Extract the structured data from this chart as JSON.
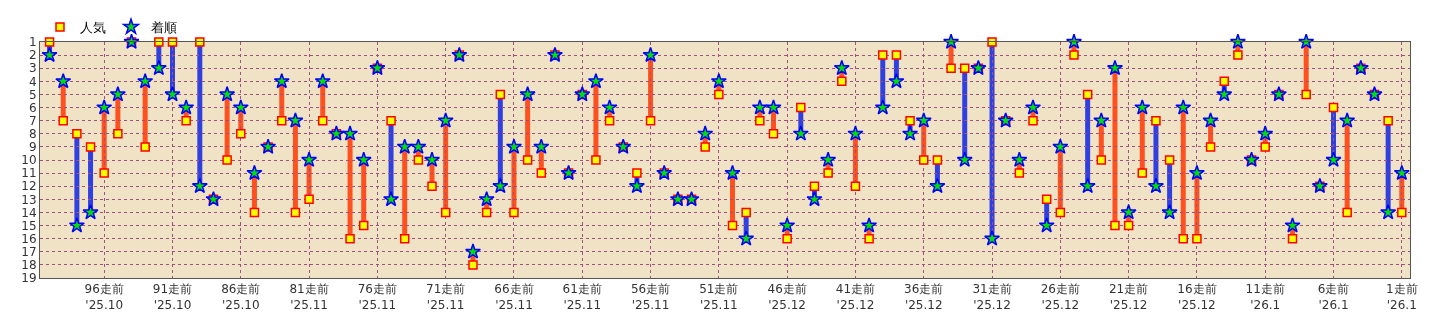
{
  "chart_data": {
    "type": "scatter",
    "categories": [
      null,
      null,
      null,
      null,
      "96走前\n'25.10",
      null,
      null,
      null,
      null,
      "91走前\n'25.10",
      null,
      null,
      null,
      null,
      "86走前\n'25.10",
      null,
      null,
      null,
      null,
      "81走前\n'25.11",
      null,
      null,
      null,
      null,
      "76走前\n'25.11",
      null,
      null,
      null,
      null,
      "71走前\n'25.11",
      null,
      null,
      null,
      null,
      "66走前\n'25.11",
      null,
      null,
      null,
      null,
      "61走前\n'25.11",
      null,
      null,
      null,
      null,
      "56走前\n'25.11",
      null,
      null,
      null,
      null,
      "51走前\n'25.11",
      null,
      null,
      null,
      null,
      "46走前\n'25.12",
      null,
      null,
      null,
      null,
      "41走前\n'25.12",
      null,
      null,
      null,
      null,
      "36走前\n'25.12",
      null,
      null,
      null,
      null,
      "31走前\n'25.12",
      null,
      null,
      null,
      null,
      "26走前\n'25.12",
      null,
      null,
      null,
      null,
      "21走前\n'25.12",
      null,
      null,
      null,
      null,
      "16走前\n'25.12",
      null,
      null,
      null,
      null,
      "11走前\n'26.1",
      null,
      null,
      null,
      null,
      "6走前\n'26.1",
      null,
      null,
      null,
      null,
      "1走前\n'26.1"
    ],
    "series": [
      {
        "name": "人気",
        "marker": "square",
        "color": "#ff0000",
        "values": [
          1,
          7,
          8,
          9,
          11,
          8,
          1,
          9,
          1,
          1,
          7,
          1,
          13,
          10,
          8,
          14,
          9,
          7,
          14,
          13,
          7,
          8,
          16,
          15,
          3,
          7,
          16,
          10,
          12,
          14,
          2,
          18,
          14,
          5,
          14,
          10,
          11,
          2,
          11,
          5,
          10,
          7,
          9,
          11,
          7,
          11,
          13,
          13,
          9,
          5,
          15,
          14,
          7,
          8,
          16,
          6,
          12,
          11,
          4,
          12,
          16,
          2,
          2,
          7,
          10,
          10,
          3,
          3,
          3,
          1,
          7,
          11,
          7,
          13,
          14,
          2,
          5,
          10,
          15,
          15,
          11,
          7,
          10,
          16,
          16,
          9,
          4,
          2,
          10,
          9,
          5,
          16,
          5,
          12,
          6,
          14,
          3,
          5,
          7,
          14
        ]
      },
      {
        "name": "着順",
        "marker": "star",
        "color": "#0000ff",
        "values": [
          2,
          4,
          15,
          14,
          6,
          5,
          1,
          4,
          3,
          5,
          6,
          12,
          13,
          5,
          6,
          11,
          9,
          4,
          7,
          10,
          4,
          8,
          8,
          10,
          3,
          13,
          9,
          9,
          10,
          7,
          2,
          17,
          13,
          12,
          9,
          5,
          9,
          2,
          11,
          5,
          4,
          6,
          9,
          12,
          2,
          11,
          13,
          13,
          8,
          4,
          11,
          16,
          6,
          6,
          15,
          8,
          13,
          10,
          3,
          8,
          15,
          6,
          4,
          8,
          7,
          12,
          1,
          10,
          3,
          16,
          7,
          10,
          6,
          15,
          9,
          1,
          12,
          7,
          3,
          14,
          6,
          12,
          14,
          6,
          11,
          7,
          5,
          1,
          10,
          8,
          5,
          15,
          1,
          12,
          10,
          7,
          3,
          5,
          14,
          11
        ]
      }
    ],
    "ylim": [
      19,
      1
    ],
    "yticks": [
      1,
      2,
      3,
      4,
      5,
      6,
      7,
      8,
      9,
      10,
      11,
      12,
      13,
      14,
      15,
      16,
      17,
      18,
      19
    ],
    "grid": true,
    "legend": "top left"
  }
}
